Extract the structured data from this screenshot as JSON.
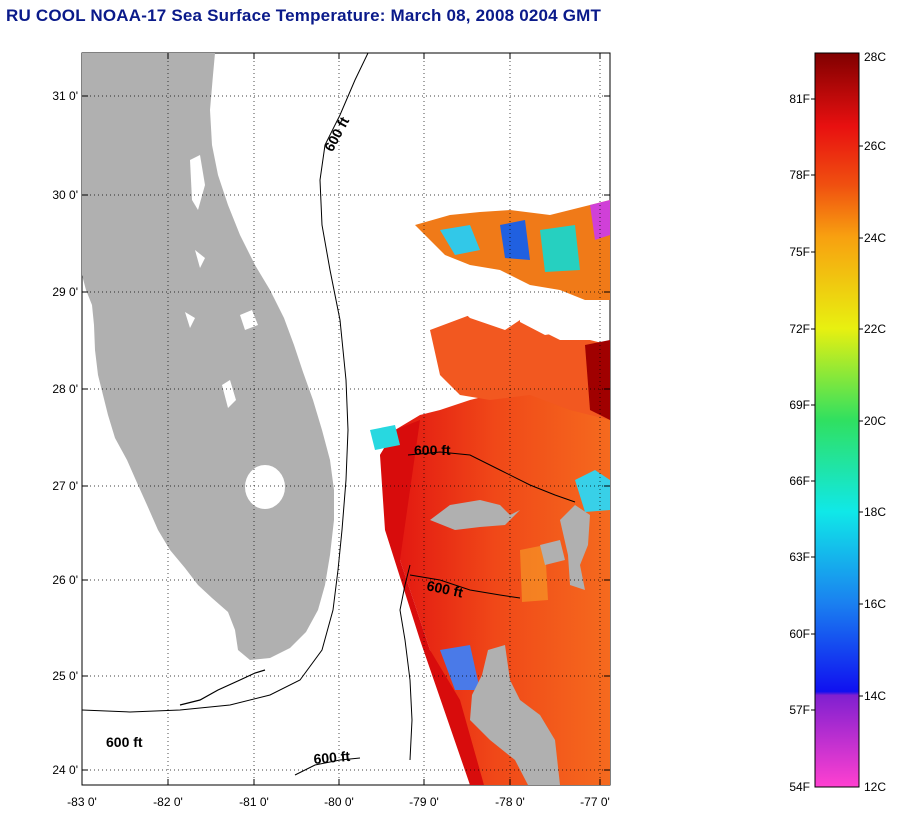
{
  "title": "RU COOL  NOAA-17  Sea Surface Temperature:  March 08, 2008 0204 GMT",
  "map": {
    "lat_ticks": [
      "31 0'",
      "30 0'",
      "29 0'",
      "28 0'",
      "27 0'",
      "26 0'",
      "25 0'",
      "24 0'"
    ],
    "lon_ticks": [
      "-83 0'",
      "-82 0'",
      "-81 0'",
      "-80 0'",
      "-79 0'",
      "-78 0'",
      "-77 0'"
    ],
    "isobath_label": "600 ft",
    "land_color": "#b0b0b0",
    "lon_range": [
      -83,
      -76.85
    ],
    "lat_range": [
      23.85,
      31.45
    ]
  },
  "colorbar": {
    "fahrenheit_labels": [
      "81F",
      "78F",
      "75F",
      "72F",
      "69F",
      "66F",
      "63F",
      "60F",
      "57F",
      "54F"
    ],
    "celsius_labels": [
      "28C",
      "26C",
      "24C",
      "22C",
      "20C",
      "18C",
      "16C",
      "14C",
      "12C"
    ],
    "range_c": [
      12,
      28
    ]
  }
}
